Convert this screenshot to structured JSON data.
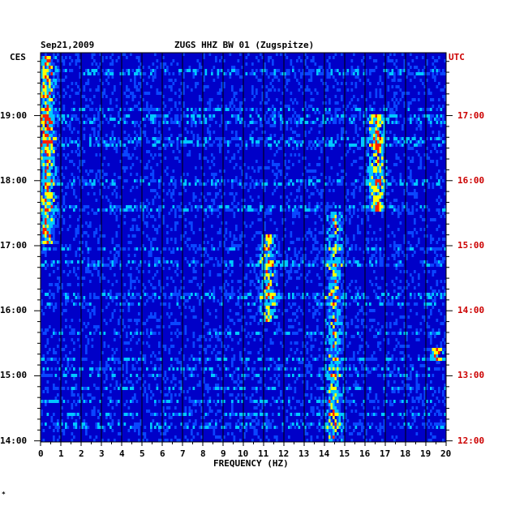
{
  "header": {
    "date": "Sep21,2009",
    "title": "ZUGS HHZ BW 01 (Zugspitze)",
    "left_tz": "CES",
    "right_tz": "UTC"
  },
  "footer": {
    "mark": "*"
  },
  "chart_data": {
    "type": "heatmap",
    "title": "ZUGS HHZ BW 01 (Zugspitze)",
    "xlabel": "FREQUENCY (HZ)",
    "xlim": [
      0,
      20
    ],
    "x_ticks": [
      "0",
      "1",
      "2",
      "3",
      "4",
      "5",
      "6",
      "7",
      "8",
      "9",
      "10",
      "11",
      "12",
      "13",
      "14",
      "15",
      "16",
      "17",
      "18",
      "19",
      "20"
    ],
    "y_left_label": "CES",
    "y_left_ticks": [
      "14:00",
      "15:00",
      "16:00",
      "17:00",
      "18:00",
      "19:00"
    ],
    "y_right_label": "UTC",
    "y_right_ticks": [
      "12:00",
      "13:00",
      "14:00",
      "15:00",
      "16:00",
      "17:00"
    ],
    "time_range_ces": [
      "13:59",
      "19:58"
    ],
    "colors": {
      "background": "#0000c8",
      "low": "#0a46ff",
      "mid": "#00c8ff",
      "high": "#ffff00",
      "peak": "#ff2000",
      "grid": "#000000",
      "utc_text": "#cc0000"
    },
    "hotspots": [
      {
        "freq": 0.3,
        "time_from": "17:00",
        "time_to": "19:55",
        "intensity": 0.85
      },
      {
        "freq": 11.2,
        "time_from": "15:50",
        "time_to": "17:10",
        "intensity": 0.7
      },
      {
        "freq": 14.5,
        "time_from": "14:00",
        "time_to": "17:30",
        "intensity": 0.6
      },
      {
        "freq": 16.6,
        "time_from": "17:30",
        "time_to": "19:00",
        "intensity": 0.75
      },
      {
        "freq": 19.5,
        "time_from": "15:15",
        "time_to": "15:25",
        "intensity": 0.8
      }
    ]
  }
}
